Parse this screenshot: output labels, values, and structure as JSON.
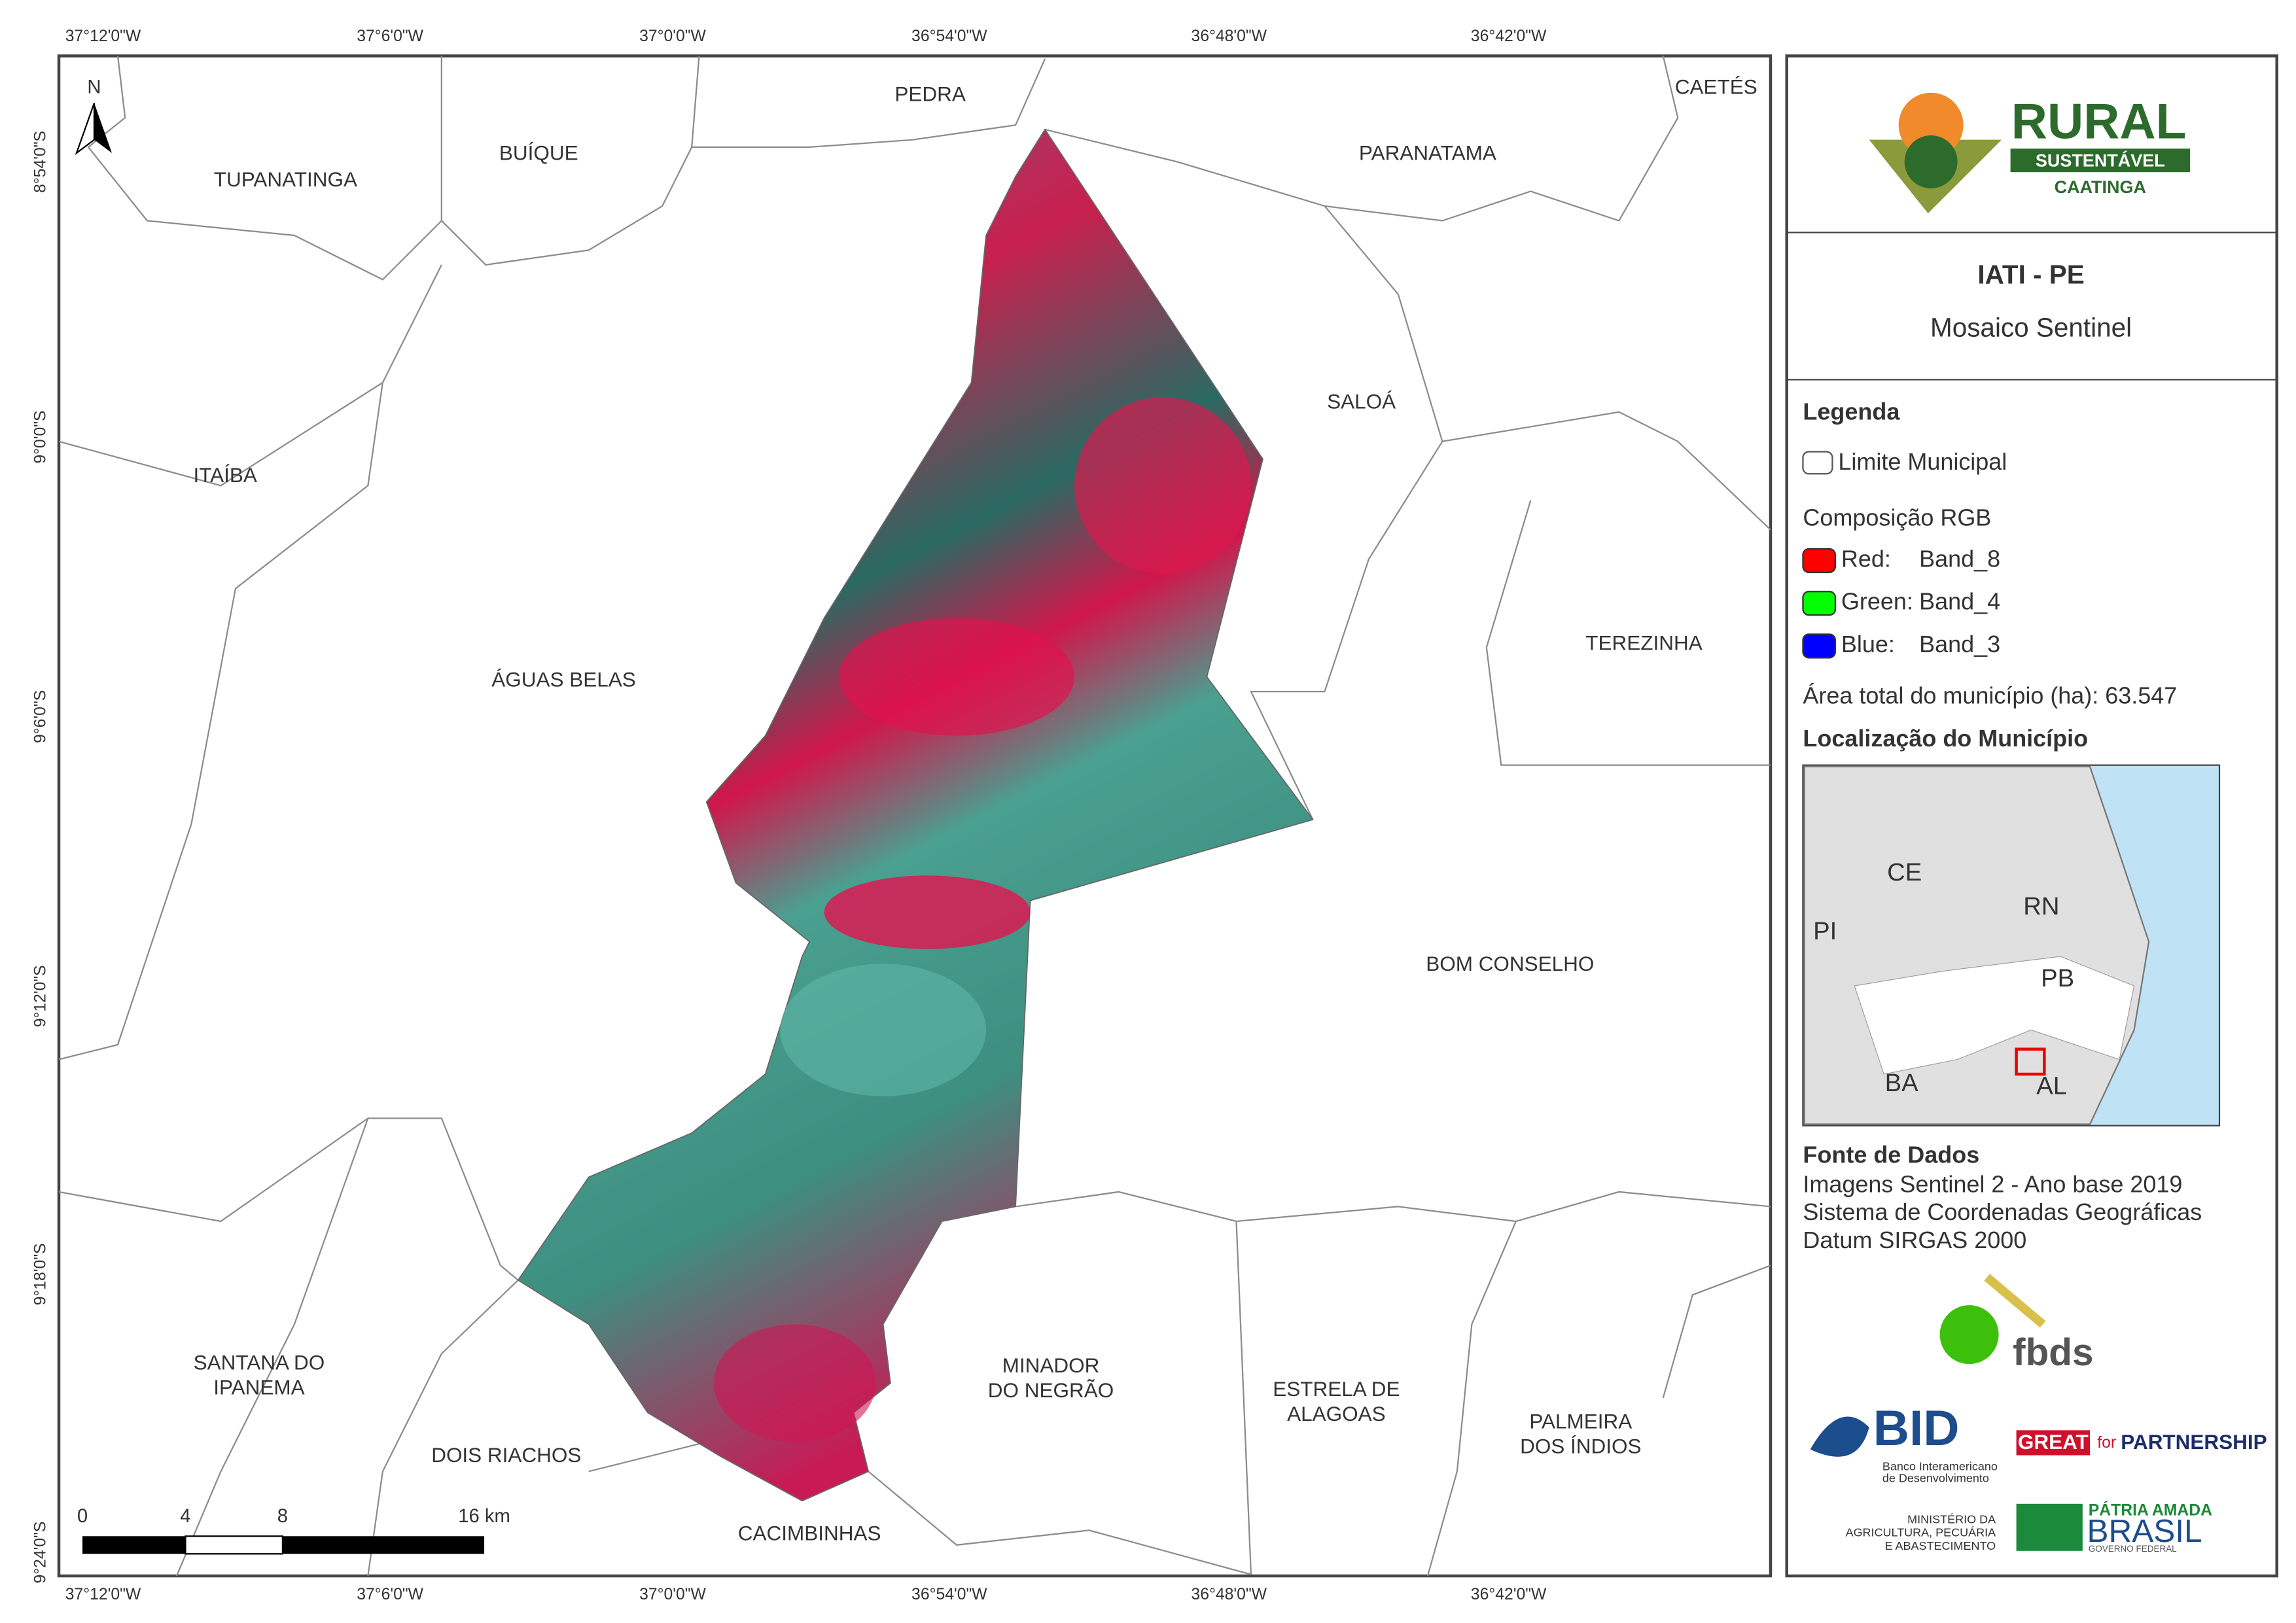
{
  "map": {
    "top_coords": [
      "37°12'0\"W",
      "37°6'0\"W",
      "37°0'0\"W",
      "36°54'0\"W",
      "36°48'0\"W",
      "36°42'0\"W"
    ],
    "left_coords": [
      "8°54'0\"S",
      "9°0'0\"S",
      "9°6'0\"S",
      "9°12'0\"S",
      "9°18'0\"S",
      "9°24'0\"S"
    ],
    "north": "N",
    "municipalities": [
      [
        "PEDRA"
      ],
      [
        "CAETÉS"
      ],
      [
        "TUPANATINGA"
      ],
      [
        "BUÍQUE"
      ],
      [
        "PARANATAMA"
      ],
      [
        "SALOÁ"
      ],
      [
        "ITAÍBA"
      ],
      [
        "ÁGUAS BELAS"
      ],
      [
        "TEREZINHA"
      ],
      [
        "BOM CONSELHO"
      ],
      [
        "SANTANA DO",
        "IPANEMA"
      ],
      [
        "MINADOR",
        "DO NEGRÃO"
      ],
      [
        "ESTRELA DE",
        "ALAGOAS"
      ],
      [
        "PALMEIRA",
        "DOS ÍNDIOS"
      ],
      [
        "DOIS RIACHOS"
      ],
      [
        "CACIMBINHAS"
      ]
    ],
    "scale": [
      "0",
      "4",
      "8",
      "16 km"
    ]
  },
  "panel": {
    "logo": {
      "title": "RURAL",
      "sub": "SUSTENTÁVEL",
      "caatinga": "CAATINGA"
    },
    "title": "IATI - PE",
    "subtitle": "Mosaico Sentinel",
    "legend": {
      "heading": "Legenda",
      "limit": "Limite Municipal",
      "rgb": "Composição RGB",
      "bands": [
        {
          "name": "Red:",
          "band": "Band_8",
          "color": "#ff0000"
        },
        {
          "name": "Green:",
          "band": "Band_4",
          "color": "#00ff00"
        },
        {
          "name": "Blue:",
          "band": "Band_3",
          "color": "#0000ff"
        }
      ],
      "area": "Área total do município (ha): 63.547"
    },
    "location": {
      "heading": "Localização do Município",
      "states": [
        "CE",
        "RN",
        "PI",
        "PB",
        "BA",
        "AL"
      ]
    },
    "source": {
      "heading": "Fonte de Dados",
      "lines": [
        "Imagens Sentinel 2 - Ano base 2019",
        "Sistema de Coordenadas Geográficas",
        "Datum SIRGAS 2000"
      ]
    },
    "partners": {
      "fbds": "fbds",
      "bid": "BID",
      "bid_sub": [
        "Banco Interamericano",
        "de Desenvolvimento"
      ],
      "great": "GREAT",
      "for": "for",
      "partnership": "PARTNERSHIP",
      "ministry": [
        "MINISTÉRIO DA",
        "AGRICULTURA, PECUÁRIA",
        "E ABASTECIMENTO"
      ],
      "patria": "PÁTRIA AMADA",
      "brasil": "BRASIL",
      "gov": "GOVERNO FEDERAL"
    }
  }
}
